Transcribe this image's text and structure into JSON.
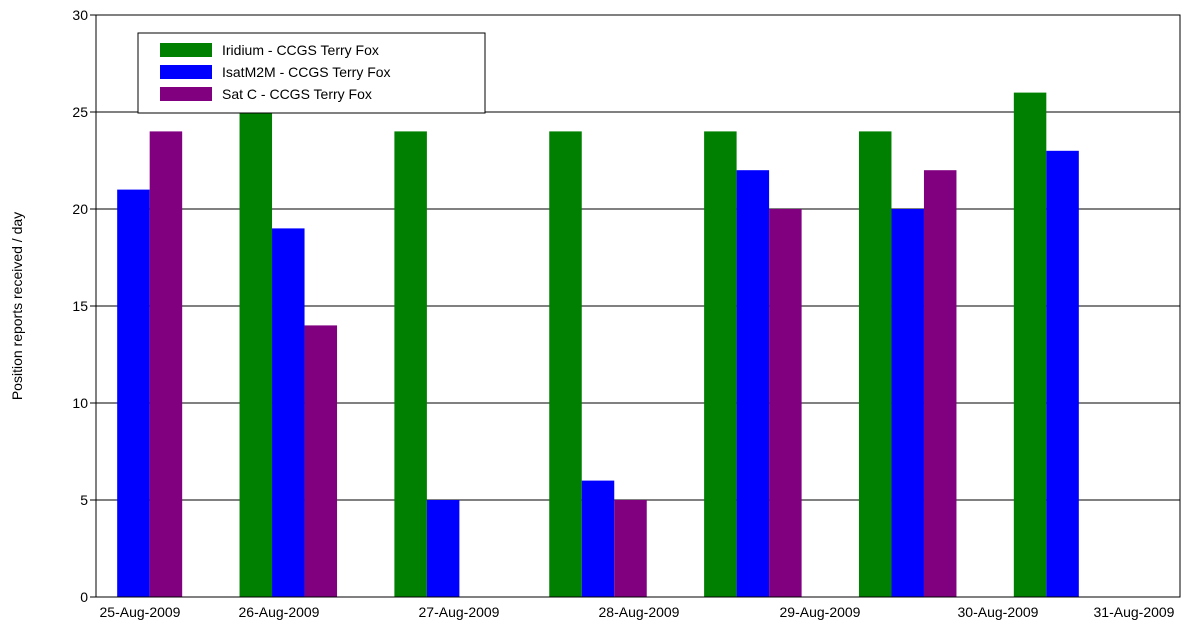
{
  "chart_data": {
    "type": "bar",
    "categories": [
      "25-Aug-2009",
      "26-Aug-2009",
      "27-Aug-2009",
      "28-Aug-2009",
      "29-Aug-2009",
      "30-Aug-2009",
      "31-Aug-2009"
    ],
    "series": [
      {
        "name": "Iridium - CCGS Terry Fox",
        "color": "#008000",
        "values": [
          0,
          25,
          24,
          24,
          24,
          24,
          26
        ]
      },
      {
        "name": "IsatM2M - CCGS Terry Fox",
        "color": "#0000ff",
        "values": [
          21,
          19,
          5,
          6,
          22,
          20,
          23
        ]
      },
      {
        "name": "Sat C - CCGS Terry Fox",
        "color": "#800080",
        "values": [
          24,
          14,
          0,
          5,
          20,
          22,
          0
        ]
      }
    ],
    "ylabel": "Position reports received / day",
    "xlabel": "",
    "ylim": [
      0,
      30
    ],
    "yticks": [
      0,
      5,
      10,
      15,
      20,
      25,
      30
    ],
    "grid": true,
    "legend_position": "top-left"
  }
}
